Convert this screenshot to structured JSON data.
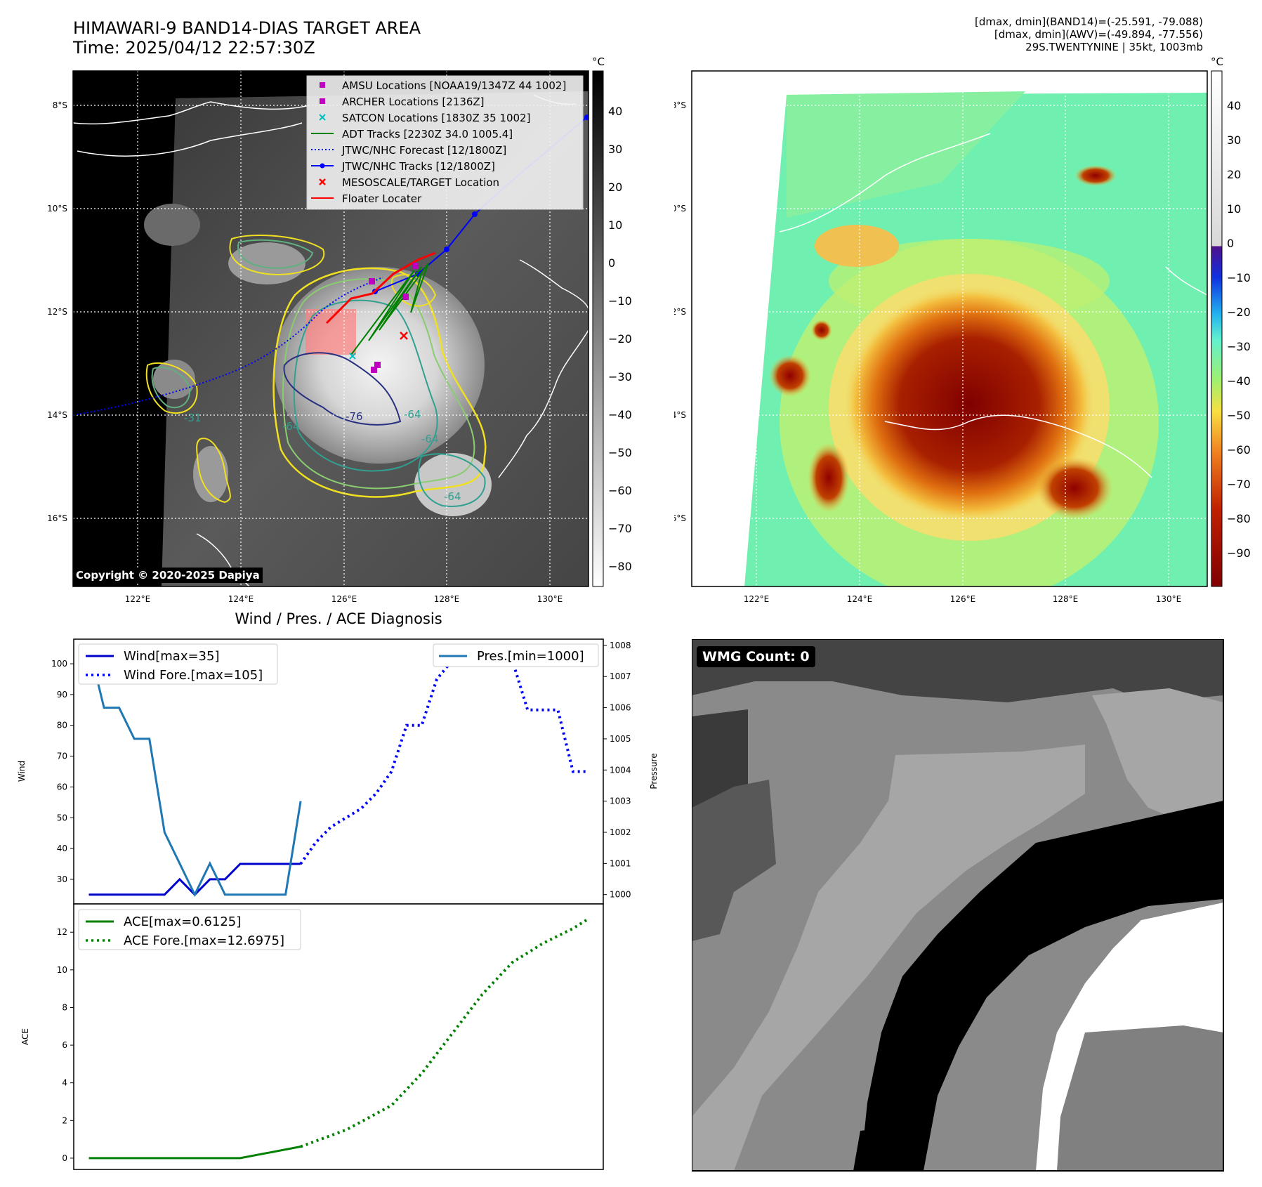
{
  "header": {
    "title_line1": "HIMAWARI-9 BAND14-DIAS TARGET AREA",
    "title_line2": "Time: 2025/04/12 22:57:30Z",
    "right_line1": "[dmax, dmin](BAND14)=(-25.591, -79.088)",
    "right_line2": "[dmax, dmin](AWV)=(-49.894, -77.556)",
    "right_line3": "29S.TWENTYNINE | 35kt, 1003mb"
  },
  "map_axes": {
    "lat_labels": [
      "8°S",
      "10°S",
      "12°S",
      "14°S",
      "16°S"
    ],
    "lon_labels": [
      "122°E",
      "124°E",
      "126°E",
      "128°E",
      "130°E"
    ]
  },
  "ir_map": {
    "legend": [
      {
        "label": "AMSU Locations [NOAA19/1347Z 44 1002]",
        "marker": "square",
        "color": "#c000c0"
      },
      {
        "label": "ARCHER Locations [2136Z]",
        "marker": "square",
        "color": "#c000c0"
      },
      {
        "label": "SATCON Locations [1830Z 35 1002]",
        "marker": "x",
        "color": "#00c0c0"
      },
      {
        "label": "ADT Tracks [2230Z 34.0 1005.4]",
        "marker": "line",
        "color": "#008000"
      },
      {
        "label": "JTWC/NHC Forecast [12/1800Z]",
        "marker": "dotted",
        "color": "#0000ff"
      },
      {
        "label": "JTWC/NHC Tracks [12/1800Z]",
        "marker": "line-dot",
        "color": "#0000ff"
      },
      {
        "label": "MESOSCALE/TARGET Location",
        "marker": "x",
        "color": "#ff0000"
      },
      {
        "label": "Floater Locater",
        "marker": "line",
        "color": "#ff0000"
      }
    ],
    "contour_labels": [
      "-31",
      "-64",
      "-76",
      "-64",
      "-64",
      "-64"
    ],
    "colorbar": {
      "unit": "°C",
      "ticks": [
        "40",
        "30",
        "20",
        "10",
        "0",
        "−10",
        "−20",
        "−30",
        "−40",
        "−50",
        "−60",
        "−70",
        "−80"
      ]
    },
    "copyright": "Copyright © 2020-2025 Dapiya"
  },
  "awv_map": {
    "colorbar": {
      "unit": "°C",
      "ticks": [
        "40",
        "30",
        "20",
        "10",
        "0",
        "−10",
        "−20",
        "−30",
        "−40",
        "−50",
        "−60",
        "−70",
        "−80",
        "−90"
      ]
    }
  },
  "wmg": {
    "label": "WMG Count: 0"
  },
  "diag": {
    "title": "Wind / Pres. / ACE Diagnosis"
  },
  "chart_data": [
    {
      "type": "line",
      "title": "Wind / Pres. / ACE Diagnosis",
      "ylabel": "Wind",
      "y2label": "Pressure",
      "ylim": [
        22,
        108
      ],
      "y2lim": [
        999.7,
        1008.2
      ],
      "xlim": [
        -1,
        34
      ],
      "yticks": [
        "30",
        "40",
        "50",
        "60",
        "70",
        "80",
        "90",
        "100"
      ],
      "y2ticks": [
        "1000",
        "1001",
        "1002",
        "1003",
        "1004",
        "1005",
        "1006",
        "1007",
        "1008"
      ],
      "series": [
        {
          "name": "Wind[max=35]",
          "axis": "left",
          "style": "solid",
          "color": "#0000cc",
          "x": [
            0,
            1,
            2,
            3,
            4,
            5,
            6,
            7,
            8,
            9,
            10,
            11,
            12,
            13,
            14
          ],
          "y": [
            25,
            25,
            25,
            25,
            25,
            25,
            30,
            25,
            30,
            30,
            35,
            35,
            35,
            35,
            35
          ]
        },
        {
          "name": "Wind Fore.[max=105]",
          "axis": "left",
          "style": "dotted",
          "color": "#0000ff",
          "x": [
            14,
            15,
            16,
            17,
            18,
            19,
            20,
            21,
            22,
            23,
            24,
            25,
            26,
            27,
            28,
            29,
            30,
            31,
            32,
            33
          ],
          "y": [
            35,
            42,
            47,
            50,
            53,
            58,
            65,
            80,
            80,
            95,
            101,
            101,
            104,
            104,
            101,
            85,
            85,
            85,
            65,
            65
          ]
        },
        {
          "name": "Pres.[min=1000]",
          "axis": "right",
          "style": "solid",
          "color": "#1f77b4",
          "x": [
            0,
            1,
            2,
            3,
            4,
            5,
            6,
            7,
            8,
            9,
            10,
            11,
            12,
            13,
            14
          ],
          "y": [
            1008,
            1006,
            1006,
            1005,
            1005,
            1002,
            1001,
            1000,
            1001,
            1000,
            1000,
            1000,
            1000,
            1000,
            1003
          ]
        }
      ]
    },
    {
      "type": "line",
      "ylabel": "ACE",
      "ylim": [
        -0.6,
        13.5
      ],
      "xlim": [
        -1,
        34
      ],
      "yticks": [
        "0",
        "2",
        "4",
        "6",
        "8",
        "10",
        "12"
      ],
      "series": [
        {
          "name": "ACE[max=0.6125]",
          "style": "solid",
          "color": "#008000",
          "x": [
            0,
            10,
            14
          ],
          "y": [
            0,
            0,
            0.6125
          ]
        },
        {
          "name": "ACE Fore.[max=12.6975]",
          "style": "dotted",
          "color": "#008000",
          "x": [
            14,
            17,
            20,
            22,
            24,
            26,
            28,
            30,
            32,
            33
          ],
          "y": [
            0.6125,
            1.5,
            2.8,
            4.5,
            6.6,
            8.7,
            10.4,
            11.4,
            12.2,
            12.6975
          ]
        }
      ]
    }
  ]
}
